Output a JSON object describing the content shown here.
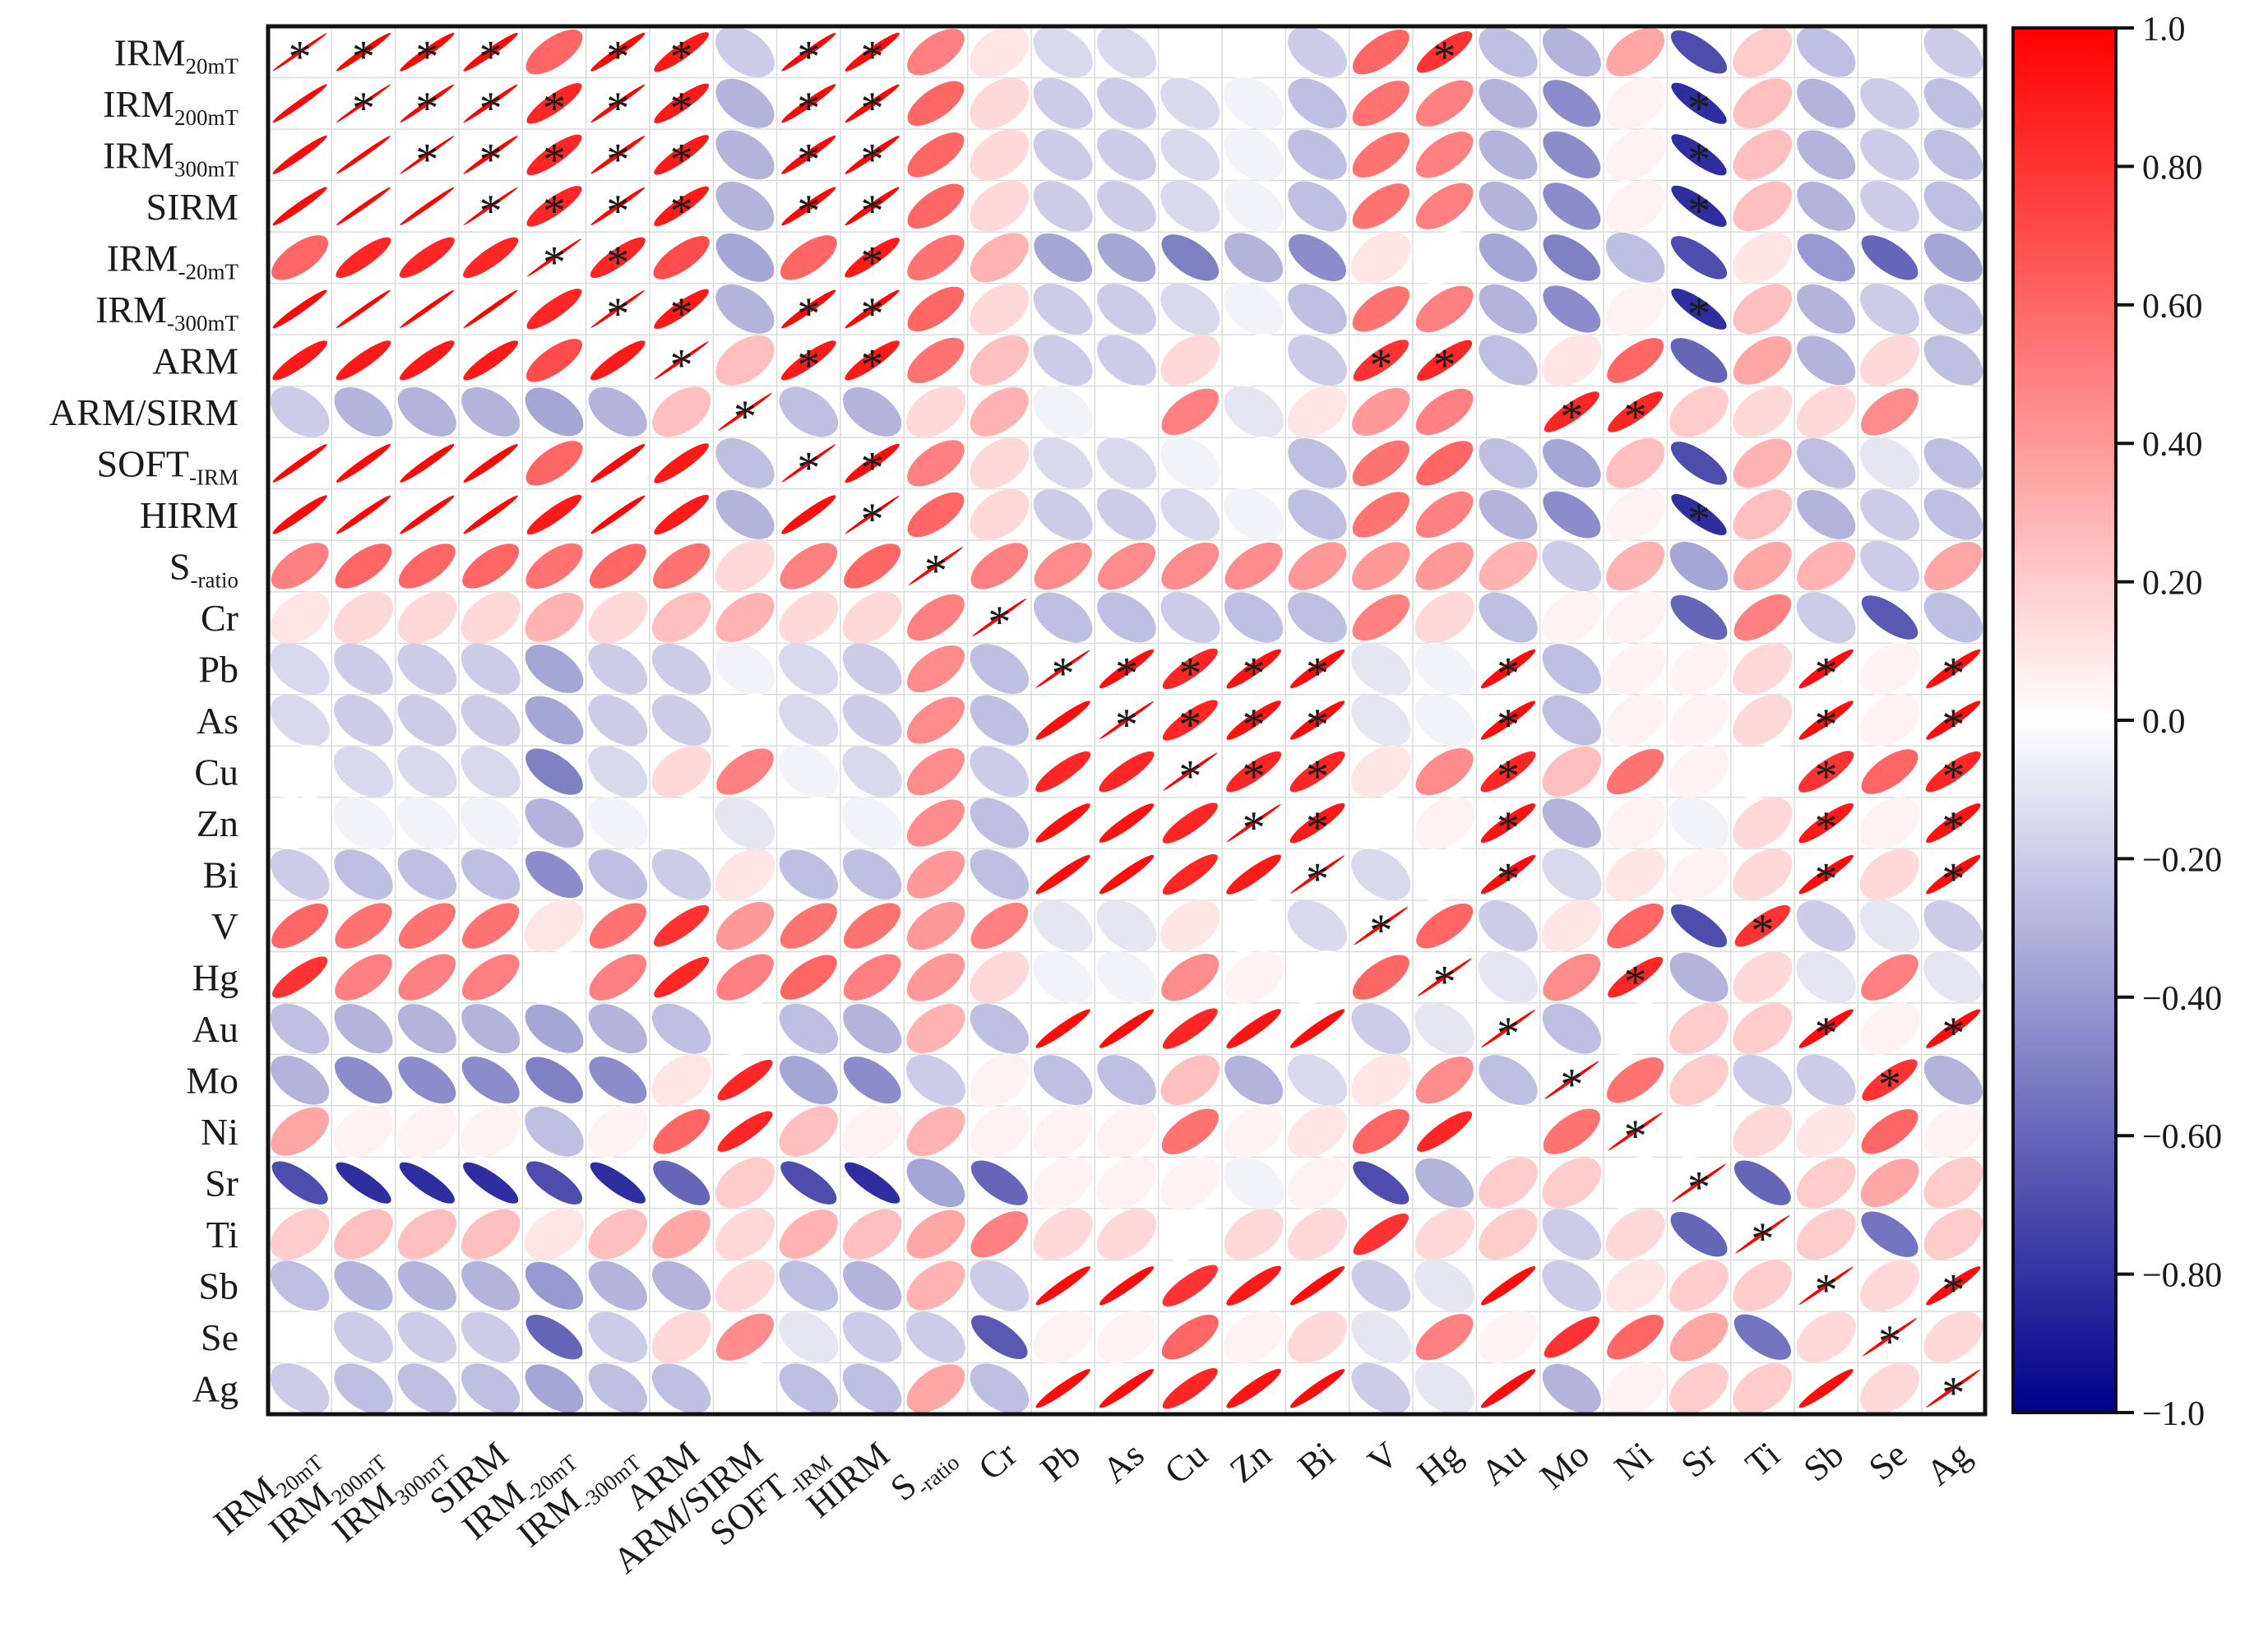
{
  "chart_data": {
    "type": "heatmap",
    "subtype": "correlation-ellipse-matrix",
    "title": "",
    "variables": [
      {
        "base": "IRM",
        "sub": "20mT"
      },
      {
        "base": "IRM",
        "sub": "200mT"
      },
      {
        "base": "IRM",
        "sub": "300mT"
      },
      {
        "base": "SIRM",
        "sub": ""
      },
      {
        "base": "IRM",
        "sub": "-20mT"
      },
      {
        "base": "IRM",
        "sub": "-300mT"
      },
      {
        "base": "ARM",
        "sub": ""
      },
      {
        "base": "ARM/SIRM",
        "sub": ""
      },
      {
        "base": "SOFT",
        "sub": "-IRM"
      },
      {
        "base": "HIRM",
        "sub": ""
      },
      {
        "base": "S",
        "sub": "-ratio"
      },
      {
        "base": "Cr",
        "sub": ""
      },
      {
        "base": "Pb",
        "sub": ""
      },
      {
        "base": "As",
        "sub": ""
      },
      {
        "base": "Cu",
        "sub": ""
      },
      {
        "base": "Zn",
        "sub": ""
      },
      {
        "base": "Bi",
        "sub": ""
      },
      {
        "base": "V",
        "sub": ""
      },
      {
        "base": "Hg",
        "sub": ""
      },
      {
        "base": "Au",
        "sub": ""
      },
      {
        "base": "Mo",
        "sub": ""
      },
      {
        "base": "Ni",
        "sub": ""
      },
      {
        "base": "Sr",
        "sub": ""
      },
      {
        "base": "Ti",
        "sub": ""
      },
      {
        "base": "Sb",
        "sub": ""
      },
      {
        "base": "Se",
        "sub": ""
      },
      {
        "base": "Ag",
        "sub": ""
      }
    ],
    "matrix": [
      [
        1.0,
        0.98,
        0.97,
        0.97,
        0.6,
        0.97,
        0.9,
        -0.2,
        0.98,
        0.96,
        0.5,
        0.1,
        -0.15,
        -0.15,
        0.0,
        0.0,
        -0.2,
        0.6,
        0.8,
        -0.25,
        -0.3,
        0.35,
        -0.7,
        0.2,
        -0.25,
        0.0,
        -0.2
      ],
      [
        0.98,
        1.0,
        0.99,
        0.99,
        0.85,
        0.99,
        0.9,
        -0.3,
        0.97,
        0.98,
        0.6,
        0.15,
        -0.2,
        -0.2,
        -0.15,
        -0.05,
        -0.25,
        0.55,
        0.5,
        -0.3,
        -0.45,
        0.05,
        -0.82,
        0.25,
        -0.3,
        -0.2,
        -0.25
      ],
      [
        0.97,
        0.99,
        1.0,
        0.99,
        0.85,
        0.99,
        0.9,
        -0.3,
        0.97,
        0.98,
        0.6,
        0.15,
        -0.2,
        -0.2,
        -0.15,
        -0.05,
        -0.25,
        0.55,
        0.5,
        -0.3,
        -0.45,
        0.05,
        -0.82,
        0.25,
        -0.3,
        -0.2,
        -0.25
      ],
      [
        0.97,
        0.99,
        0.99,
        1.0,
        0.85,
        0.99,
        0.9,
        -0.3,
        0.97,
        0.98,
        0.6,
        0.15,
        -0.2,
        -0.2,
        -0.15,
        -0.05,
        -0.25,
        0.55,
        0.5,
        -0.3,
        -0.45,
        0.05,
        -0.82,
        0.25,
        -0.3,
        -0.2,
        -0.25
      ],
      [
        0.6,
        0.85,
        0.85,
        0.85,
        1.0,
        0.85,
        0.7,
        -0.35,
        0.6,
        0.9,
        0.55,
        0.3,
        -0.35,
        -0.35,
        -0.5,
        -0.3,
        -0.45,
        0.1,
        0.0,
        -0.35,
        -0.5,
        -0.25,
        -0.7,
        0.1,
        -0.4,
        -0.6,
        -0.35
      ],
      [
        0.97,
        0.99,
        0.99,
        0.99,
        0.85,
        1.0,
        0.9,
        -0.3,
        0.97,
        0.98,
        0.6,
        0.15,
        -0.2,
        -0.2,
        -0.15,
        -0.05,
        -0.25,
        0.55,
        0.5,
        -0.3,
        -0.45,
        0.05,
        -0.82,
        0.25,
        -0.3,
        -0.2,
        -0.25
      ],
      [
        0.9,
        0.9,
        0.9,
        0.9,
        0.7,
        0.9,
        1.0,
        0.25,
        0.9,
        0.9,
        0.55,
        0.25,
        -0.2,
        -0.2,
        0.15,
        0.0,
        -0.2,
        0.8,
        0.85,
        -0.25,
        0.1,
        0.6,
        -0.6,
        0.35,
        -0.3,
        0.15,
        -0.25
      ],
      [
        -0.2,
        -0.3,
        -0.3,
        -0.3,
        -0.35,
        -0.3,
        0.25,
        1.0,
        -0.25,
        -0.3,
        0.15,
        0.3,
        -0.05,
        0.0,
        0.5,
        -0.1,
        0.1,
        0.4,
        0.5,
        0.0,
        0.85,
        0.85,
        0.2,
        0.15,
        0.15,
        0.45,
        0.0
      ],
      [
        0.98,
        0.97,
        0.97,
        0.97,
        0.6,
        0.97,
        0.9,
        -0.25,
        1.0,
        0.95,
        0.5,
        0.15,
        -0.15,
        -0.15,
        -0.05,
        0.0,
        -0.25,
        0.55,
        0.6,
        -0.25,
        -0.35,
        0.25,
        -0.7,
        0.3,
        -0.25,
        -0.1,
        -0.25
      ],
      [
        0.96,
        0.98,
        0.98,
        0.98,
        0.9,
        0.98,
        0.9,
        -0.3,
        0.95,
        1.0,
        0.6,
        0.15,
        -0.2,
        -0.2,
        -0.15,
        -0.05,
        -0.25,
        0.55,
        0.5,
        -0.3,
        -0.45,
        0.05,
        -0.82,
        0.25,
        -0.3,
        -0.2,
        -0.25
      ],
      [
        0.5,
        0.6,
        0.6,
        0.6,
        0.55,
        0.6,
        0.55,
        0.15,
        0.5,
        0.6,
        1.0,
        0.5,
        0.45,
        0.45,
        0.45,
        0.45,
        0.4,
        0.4,
        0.4,
        0.3,
        -0.2,
        0.3,
        -0.35,
        0.35,
        0.3,
        -0.2,
        0.35
      ],
      [
        0.1,
        0.15,
        0.15,
        0.15,
        0.3,
        0.15,
        0.25,
        0.3,
        0.15,
        0.15,
        0.5,
        1.0,
        -0.25,
        -0.25,
        -0.2,
        -0.25,
        -0.25,
        0.5,
        0.15,
        -0.25,
        0.05,
        0.05,
        -0.6,
        0.5,
        -0.2,
        -0.65,
        -0.25
      ],
      [
        -0.15,
        -0.2,
        -0.2,
        -0.2,
        -0.35,
        -0.2,
        -0.2,
        -0.05,
        -0.15,
        -0.2,
        0.45,
        -0.25,
        1.0,
        0.95,
        0.85,
        0.93,
        0.95,
        -0.1,
        -0.05,
        0.95,
        -0.25,
        0.05,
        0.05,
        0.15,
        0.95,
        0.05,
        0.95
      ],
      [
        -0.15,
        -0.2,
        -0.2,
        -0.2,
        -0.35,
        -0.2,
        -0.2,
        0.0,
        -0.15,
        -0.2,
        0.45,
        -0.25,
        0.95,
        1.0,
        0.85,
        0.93,
        0.95,
        -0.1,
        -0.05,
        0.95,
        -0.25,
        0.05,
        0.05,
        0.15,
        0.95,
        0.05,
        0.95
      ],
      [
        0.0,
        -0.15,
        -0.15,
        -0.15,
        -0.5,
        -0.15,
        0.15,
        0.5,
        -0.05,
        -0.15,
        0.45,
        -0.2,
        0.85,
        0.85,
        1.0,
        0.85,
        0.85,
        0.1,
        0.45,
        0.85,
        0.25,
        0.55,
        0.05,
        0.0,
        0.8,
        0.6,
        0.85
      ],
      [
        0.0,
        -0.05,
        -0.05,
        -0.05,
        -0.3,
        -0.05,
        0.0,
        -0.1,
        0.0,
        -0.05,
        0.45,
        -0.25,
        0.93,
        0.93,
        0.85,
        1.0,
        0.9,
        0.0,
        0.05,
        0.92,
        -0.3,
        0.05,
        -0.05,
        0.15,
        0.9,
        0.05,
        0.92
      ],
      [
        -0.2,
        -0.25,
        -0.25,
        -0.25,
        -0.45,
        -0.25,
        -0.2,
        0.1,
        -0.25,
        -0.25,
        0.4,
        -0.25,
        0.95,
        0.95,
        0.85,
        0.9,
        1.0,
        -0.15,
        0.0,
        0.95,
        -0.15,
        0.1,
        0.05,
        0.15,
        0.95,
        0.15,
        0.95
      ],
      [
        0.6,
        0.55,
        0.55,
        0.55,
        0.1,
        0.55,
        0.8,
        0.4,
        0.55,
        0.55,
        0.4,
        0.5,
        -0.1,
        -0.1,
        0.1,
        0.0,
        -0.15,
        1.0,
        0.6,
        -0.2,
        0.1,
        0.6,
        -0.7,
        0.8,
        -0.2,
        -0.1,
        -0.2
      ],
      [
        0.8,
        0.5,
        0.5,
        0.5,
        0.0,
        0.5,
        0.85,
        0.5,
        0.6,
        0.5,
        0.4,
        0.15,
        -0.05,
        -0.05,
        0.45,
        0.05,
        0.0,
        0.6,
        1.0,
        -0.1,
        0.45,
        0.85,
        -0.3,
        0.15,
        -0.1,
        0.5,
        -0.1
      ],
      [
        -0.25,
        -0.3,
        -0.3,
        -0.3,
        -0.35,
        -0.3,
        -0.25,
        0.0,
        -0.25,
        -0.3,
        0.3,
        -0.25,
        0.95,
        0.95,
        0.85,
        0.92,
        0.95,
        -0.2,
        -0.1,
        1.0,
        -0.25,
        0.0,
        0.2,
        0.2,
        0.95,
        0.05,
        0.95
      ],
      [
        -0.3,
        -0.45,
        -0.45,
        -0.45,
        -0.5,
        -0.45,
        0.1,
        0.85,
        -0.35,
        -0.45,
        -0.2,
        0.05,
        -0.25,
        -0.25,
        0.25,
        -0.3,
        -0.15,
        0.1,
        0.45,
        -0.25,
        1.0,
        0.55,
        0.2,
        -0.2,
        -0.2,
        0.8,
        -0.3
      ],
      [
        0.35,
        0.05,
        0.05,
        0.05,
        -0.25,
        0.05,
        0.6,
        0.85,
        0.25,
        0.05,
        0.3,
        0.05,
        0.05,
        0.05,
        0.55,
        0.05,
        0.1,
        0.6,
        0.85,
        0.0,
        0.55,
        1.0,
        0.0,
        0.15,
        0.1,
        0.6,
        0.05
      ],
      [
        -0.7,
        -0.82,
        -0.82,
        -0.82,
        -0.7,
        -0.82,
        -0.6,
        0.2,
        -0.7,
        -0.82,
        -0.35,
        -0.6,
        0.05,
        0.05,
        0.05,
        -0.05,
        0.05,
        -0.7,
        -0.3,
        0.2,
        0.2,
        0.0,
        1.0,
        -0.6,
        0.2,
        0.35,
        0.2
      ],
      [
        0.2,
        0.25,
        0.25,
        0.25,
        0.1,
        0.25,
        0.35,
        0.15,
        0.3,
        0.25,
        0.35,
        0.5,
        0.15,
        0.15,
        0.0,
        0.15,
        0.15,
        0.8,
        0.15,
        0.2,
        -0.2,
        0.15,
        -0.6,
        1.0,
        0.2,
        -0.55,
        0.2
      ],
      [
        -0.25,
        -0.3,
        -0.3,
        -0.3,
        -0.4,
        -0.3,
        -0.3,
        0.15,
        -0.25,
        -0.3,
        0.3,
        -0.2,
        0.95,
        0.95,
        0.8,
        0.9,
        0.95,
        -0.2,
        -0.1,
        0.95,
        -0.2,
        0.1,
        0.2,
        0.2,
        1.0,
        0.15,
        0.95
      ],
      [
        0.0,
        -0.2,
        -0.2,
        -0.2,
        -0.6,
        -0.2,
        0.15,
        0.45,
        -0.1,
        -0.2,
        -0.2,
        -0.65,
        0.05,
        0.05,
        0.6,
        0.05,
        0.15,
        -0.1,
        0.5,
        0.05,
        0.8,
        0.6,
        0.35,
        -0.55,
        0.15,
        1.0,
        0.15
      ],
      [
        -0.2,
        -0.25,
        -0.25,
        -0.25,
        -0.35,
        -0.25,
        -0.25,
        0.0,
        -0.25,
        -0.25,
        0.35,
        -0.25,
        0.95,
        0.95,
        0.85,
        0.92,
        0.95,
        -0.2,
        -0.1,
        0.95,
        -0.3,
        0.05,
        0.2,
        0.2,
        0.95,
        0.15,
        1.0
      ]
    ],
    "significance_marker": "*",
    "significant_pairs": [
      [
        0,
        0
      ],
      [
        0,
        1
      ],
      [
        0,
        2
      ],
      [
        0,
        3
      ],
      [
        0,
        5
      ],
      [
        0,
        6
      ],
      [
        0,
        8
      ],
      [
        0,
        9
      ],
      [
        0,
        18
      ],
      [
        1,
        1
      ],
      [
        1,
        2
      ],
      [
        1,
        3
      ],
      [
        1,
        4
      ],
      [
        1,
        5
      ],
      [
        1,
        6
      ],
      [
        1,
        8
      ],
      [
        1,
        9
      ],
      [
        1,
        22
      ],
      [
        2,
        2
      ],
      [
        2,
        3
      ],
      [
        2,
        4
      ],
      [
        2,
        5
      ],
      [
        2,
        6
      ],
      [
        2,
        8
      ],
      [
        2,
        9
      ],
      [
        2,
        22
      ],
      [
        3,
        3
      ],
      [
        3,
        4
      ],
      [
        3,
        5
      ],
      [
        3,
        6
      ],
      [
        3,
        8
      ],
      [
        3,
        9
      ],
      [
        3,
        22
      ],
      [
        4,
        4
      ],
      [
        4,
        5
      ],
      [
        4,
        9
      ],
      [
        5,
        5
      ],
      [
        5,
        6
      ],
      [
        5,
        8
      ],
      [
        5,
        9
      ],
      [
        5,
        22
      ],
      [
        6,
        6
      ],
      [
        6,
        8
      ],
      [
        6,
        9
      ],
      [
        6,
        17
      ],
      [
        6,
        18
      ],
      [
        7,
        7
      ],
      [
        7,
        20
      ],
      [
        7,
        21
      ],
      [
        8,
        8
      ],
      [
        8,
        9
      ],
      [
        9,
        9
      ],
      [
        9,
        22
      ],
      [
        10,
        10
      ],
      [
        11,
        11
      ],
      [
        12,
        12
      ],
      [
        12,
        13
      ],
      [
        12,
        14
      ],
      [
        12,
        15
      ],
      [
        12,
        16
      ],
      [
        12,
        19
      ],
      [
        12,
        24
      ],
      [
        12,
        26
      ],
      [
        13,
        13
      ],
      [
        13,
        14
      ],
      [
        13,
        15
      ],
      [
        13,
        16
      ],
      [
        13,
        19
      ],
      [
        13,
        24
      ],
      [
        13,
        26
      ],
      [
        14,
        14
      ],
      [
        14,
        15
      ],
      [
        14,
        16
      ],
      [
        14,
        19
      ],
      [
        14,
        24
      ],
      [
        14,
        26
      ],
      [
        15,
        15
      ],
      [
        15,
        16
      ],
      [
        15,
        19
      ],
      [
        15,
        24
      ],
      [
        15,
        26
      ],
      [
        16,
        16
      ],
      [
        16,
        19
      ],
      [
        16,
        24
      ],
      [
        16,
        26
      ],
      [
        17,
        17
      ],
      [
        17,
        23
      ],
      [
        18,
        18
      ],
      [
        18,
        21
      ],
      [
        19,
        19
      ],
      [
        19,
        24
      ],
      [
        19,
        26
      ],
      [
        20,
        20
      ],
      [
        20,
        25
      ],
      [
        21,
        21
      ],
      [
        22,
        22
      ],
      [
        23,
        23
      ],
      [
        24,
        24
      ],
      [
        24,
        26
      ],
      [
        25,
        25
      ],
      [
        26,
        26
      ]
    ],
    "colorbar": {
      "range": [
        -1.0,
        1.0
      ],
      "low_color": "#00008b",
      "mid_color": "#ffffff",
      "high_color": "#ff0000",
      "ticks": [
        "1.0",
        "0.80",
        "0.60",
        "0.40",
        "0.20",
        "0.0",
        "−0.20",
        "−0.40",
        "−0.60",
        "−0.80",
        "−1.0"
      ]
    }
  }
}
